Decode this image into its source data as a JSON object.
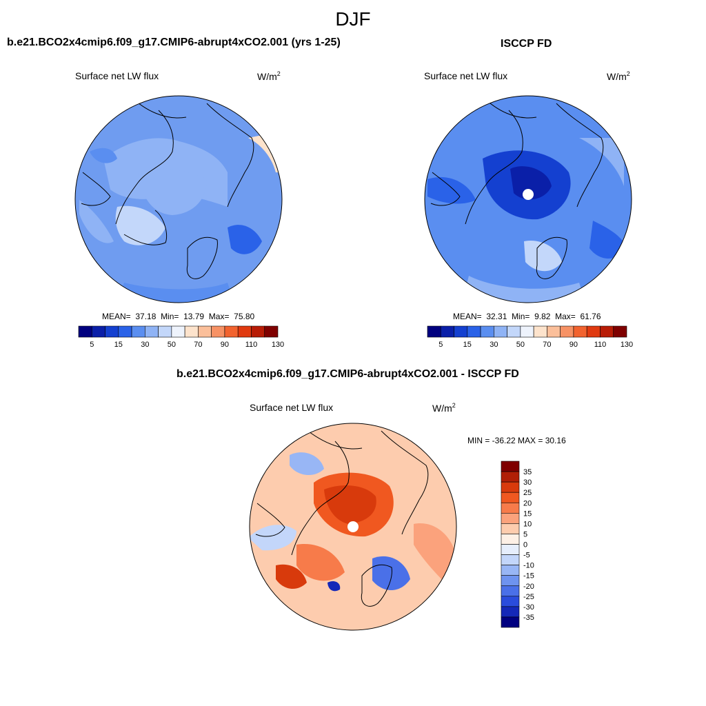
{
  "title": "DJF",
  "panels": [
    {
      "title": "b.e21.BCO2x4cmip6.f09_g17.CMIP6-abrupt4xCO2.001 (yrs 1-25)",
      "field": "Surface net LW flux",
      "units_base": "W/m",
      "units_exp": "2",
      "mean_label": "MEAN=",
      "mean": "37.18",
      "min_label": "Min=",
      "min": "13.79",
      "max_label": "Max=",
      "max": "75.80",
      "colorbar_ticks": [
        "5",
        "15",
        "30",
        "50",
        "70",
        "90",
        "110",
        "130"
      ]
    },
    {
      "title": "ISCCP FD",
      "field": "Surface net LW flux",
      "units_base": "W/m",
      "units_exp": "2",
      "mean_label": "MEAN=",
      "mean": "32.31",
      "min_label": "Min=",
      "min": "9.82",
      "max_label": "Max=",
      "max": "61.76",
      "colorbar_ticks": [
        "5",
        "15",
        "30",
        "50",
        "70",
        "90",
        "110",
        "130"
      ]
    },
    {
      "title": "b.e21.BCO2x4cmip6.f09_g17.CMIP6-abrupt4xCO2.001 - ISCCP FD",
      "field": "Surface net LW flux",
      "units_base": "W/m",
      "units_exp": "2",
      "minmax_text": "MIN = -36.22 MAX =  30.16",
      "colorbar_ticks": [
        "35",
        "30",
        "25",
        "20",
        "15",
        "10",
        "5",
        "0",
        "-5",
        "-10",
        "-15",
        "-20",
        "-25",
        "-30",
        "-35"
      ]
    }
  ],
  "colors": {
    "abs_scale": [
      "#00007f",
      "#0a1fa8",
      "#1440d0",
      "#2a62e8",
      "#5a8ef0",
      "#8fb3f5",
      "#c3d7fa",
      "#eef3fc",
      "#fde3cc",
      "#fbbf9a",
      "#f79265",
      "#f2632f",
      "#e03a10",
      "#b81c06",
      "#7f0000"
    ],
    "diff_scale": [
      "#7f0000",
      "#b01f06",
      "#d83a0c",
      "#f05820",
      "#f77b4a",
      "#fba27c",
      "#fdccae",
      "#fdf0e6",
      "#e6eefc",
      "#c3d6fa",
      "#98b6f5",
      "#6e93ef",
      "#4a70e8",
      "#2a4cdc",
      "#1428b8",
      "#000080"
    ],
    "land_outline": "#000000"
  }
}
